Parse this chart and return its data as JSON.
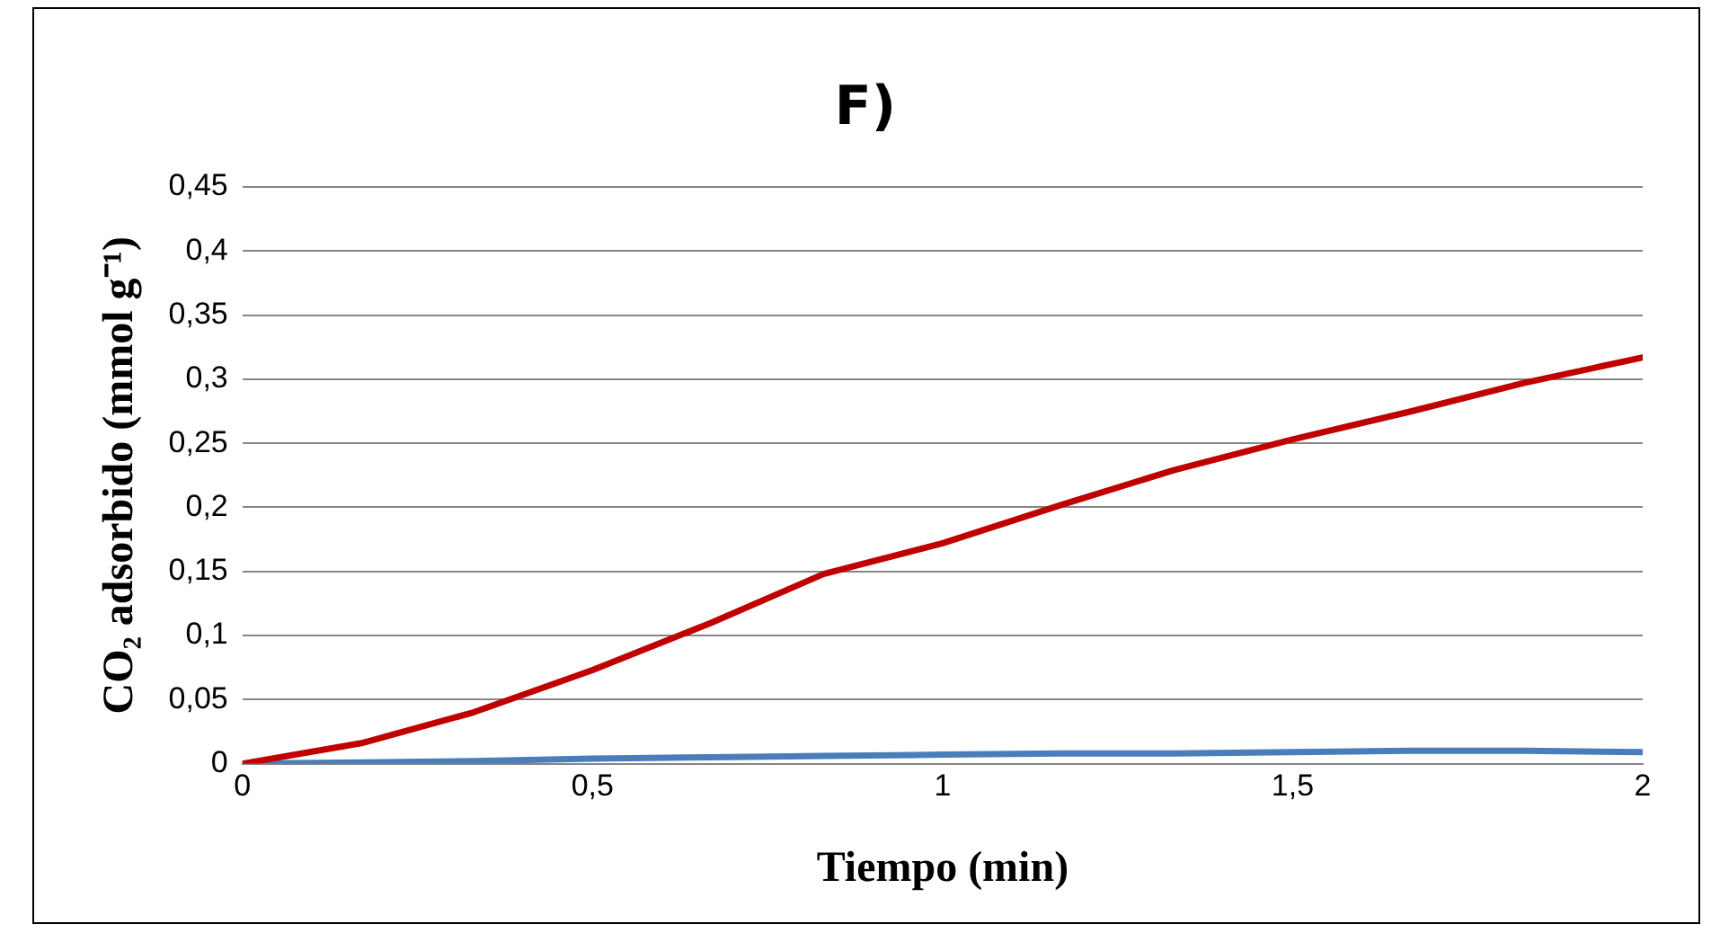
{
  "chart_data": {
    "type": "line",
    "title": "F)",
    "xlabel": "Tiempo (min)",
    "ylabel": "CO₂ adsorbido (mmol g⁻¹)",
    "x": [
      0,
      0.17,
      0.33,
      0.5,
      0.67,
      0.83,
      1,
      1.17,
      1.33,
      1.5,
      1.67,
      1.83,
      2
    ],
    "series": [
      {
        "color": "#c00000",
        "values": [
          0,
          0.016,
          0.04,
          0.073,
          0.11,
          0.148,
          0.172,
          0.202,
          0.229,
          0.253,
          0.275,
          0.297,
          0.317
        ]
      },
      {
        "color": "#4a7ebb",
        "values": [
          0,
          0.001,
          0.002,
          0.004,
          0.005,
          0.006,
          0.007,
          0.008,
          0.008,
          0.009,
          0.01,
          0.01,
          0.009
        ]
      }
    ],
    "xlim": [
      0,
      2
    ],
    "xticks": [
      0,
      {
        "value": 0.5,
        "label": "0,5"
      },
      1,
      {
        "value": 1.5,
        "label": "1,5"
      },
      2
    ],
    "ylim": [
      0,
      0.45
    ],
    "yticks": [
      0,
      {
        "value": 0.05,
        "label": "0,05"
      },
      {
        "value": 0.1,
        "label": "0,1"
      },
      {
        "value": 0.15,
        "label": "0,15"
      },
      {
        "value": 0.2,
        "label": "0,2"
      },
      {
        "value": 0.25,
        "label": "0,25"
      },
      {
        "value": 0.3,
        "label": "0,3"
      },
      {
        "value": 0.35,
        "label": "0,35"
      },
      {
        "value": 0.4,
        "label": "0,4"
      },
      {
        "value": 0.45,
        "label": "0,45"
      }
    ],
    "grid": "y",
    "legend": false,
    "marker": "none",
    "line_style": "solid"
  }
}
